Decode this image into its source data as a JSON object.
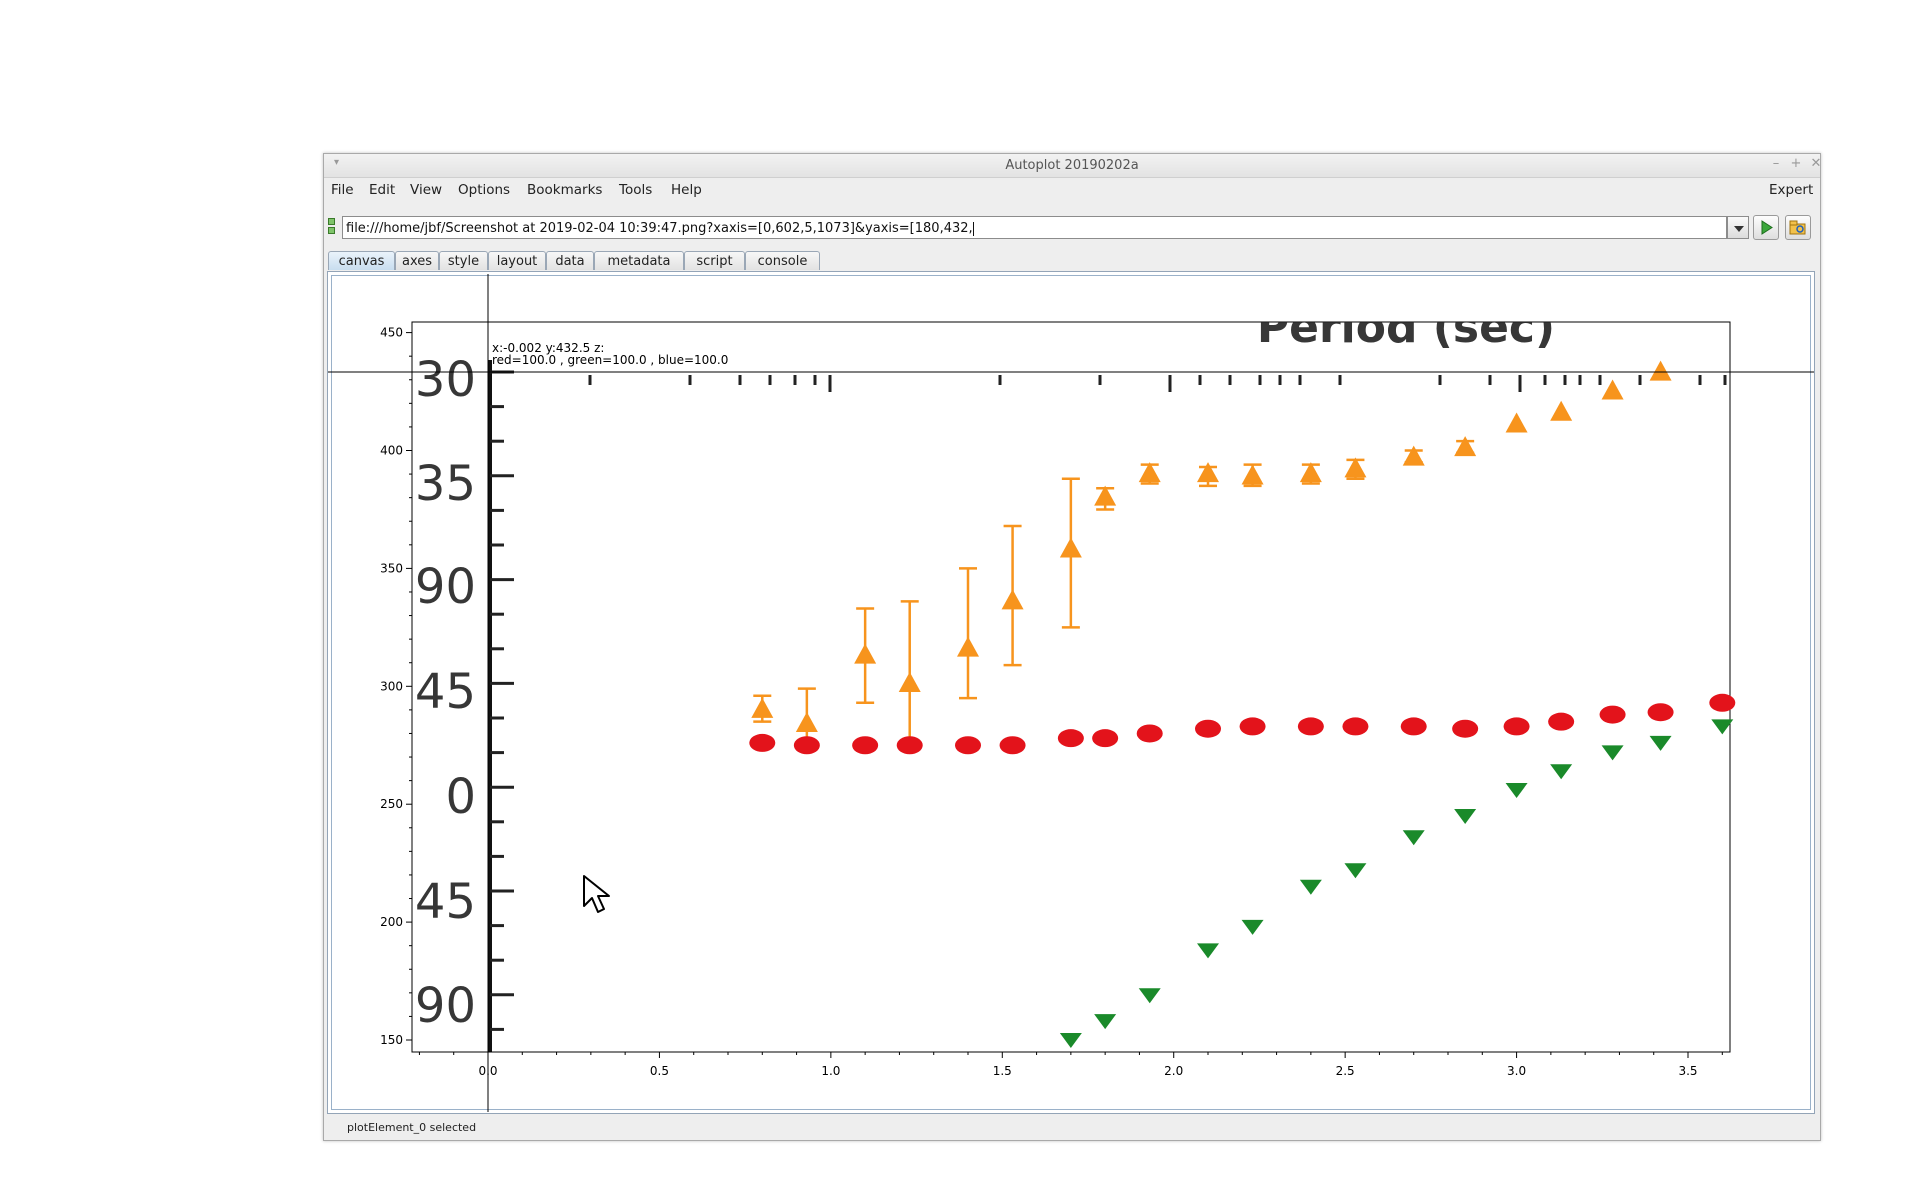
{
  "window": {
    "title": "Autoplot 20190202a"
  },
  "menubar": {
    "items": [
      "File",
      "Edit",
      "View",
      "Options",
      "Bookmarks",
      "Tools",
      "Help"
    ],
    "expert_label": "Expert"
  },
  "urlbar": {
    "value": "file:///home/jbf/Screenshot at 2019-02-04 10:39:47.png?xaxis=[0,602,5,1073]&yaxis=[180,432,"
  },
  "tabs": [
    {
      "label": "canvas",
      "active": true
    },
    {
      "label": "axes"
    },
    {
      "label": "style"
    },
    {
      "label": "layout"
    },
    {
      "label": "data"
    },
    {
      "label": "metadata"
    },
    {
      "label": "script"
    },
    {
      "label": "console"
    }
  ],
  "readout": {
    "line1": "x:-0.002  y:432.5  z:",
    "line2": "red=100.0 , green=100.0 , blue=100.0"
  },
  "status": {
    "text": "plotElement_0 selected"
  },
  "icons": [
    "minimize-icon",
    "maximize-icon",
    "close-icon",
    "run-icon",
    "open-folder-icon",
    "dropdown-arrow-icon",
    "mouse-cursor-icon"
  ],
  "chart_data": {
    "type": "scatter",
    "xlim": [
      -0.2,
      3.62
    ],
    "ylim": [
      148,
      452
    ],
    "x_ticks": [
      "0.0",
      "0.5",
      "1.0",
      "1.5",
      "2.0",
      "2.5",
      "3.0",
      "3.5"
    ],
    "y_ticks": [
      "150",
      "200",
      "250",
      "300",
      "350",
      "400",
      "450"
    ],
    "image_text": {
      "header": "Period (sec)",
      "left_labels": [
        "30",
        "35",
        "90",
        "45",
        "0",
        "45",
        "90"
      ]
    },
    "series": [
      {
        "color": "#f7941d",
        "marker": "triangle-up",
        "points": [
          {
            "x": 0.8,
            "y": 290,
            "err": [
              285,
              296
            ]
          },
          {
            "x": 0.93,
            "y": 284,
            "err": [
              274,
              299
            ]
          },
          {
            "x": 1.1,
            "y": 313,
            "err": [
              293,
              333
            ]
          },
          {
            "x": 1.23,
            "y": 301,
            "err": [
              277,
              336
            ]
          },
          {
            "x": 1.4,
            "y": 316,
            "err": [
              295,
              350
            ]
          },
          {
            "x": 1.53,
            "y": 336,
            "err": [
              309,
              368
            ]
          },
          {
            "x": 1.7,
            "y": 358,
            "err": [
              325,
              388
            ]
          },
          {
            "x": 1.8,
            "y": 380,
            "err": [
              375,
              384
            ]
          },
          {
            "x": 1.93,
            "y": 390,
            "err": [
              386,
              394
            ]
          },
          {
            "x": 2.1,
            "y": 390,
            "err": [
              385,
              393
            ]
          },
          {
            "x": 2.23,
            "y": 389,
            "err": [
              385,
              394
            ]
          },
          {
            "x": 2.4,
            "y": 390,
            "err": [
              386,
              394
            ]
          },
          {
            "x": 2.53,
            "y": 392,
            "err": [
              388,
              396
            ]
          },
          {
            "x": 2.7,
            "y": 397,
            "err": [
              395,
              400
            ]
          },
          {
            "x": 2.85,
            "y": 401,
            "err": [
              399,
              404
            ]
          },
          {
            "x": 3.0,
            "y": 411
          },
          {
            "x": 3.13,
            "y": 416
          },
          {
            "x": 3.28,
            "y": 425
          },
          {
            "x": 3.42,
            "y": 433
          }
        ]
      },
      {
        "color": "#e3131b",
        "marker": "circle",
        "points": [
          {
            "x": 0.8,
            "y": 276
          },
          {
            "x": 0.93,
            "y": 275
          },
          {
            "x": 1.1,
            "y": 275
          },
          {
            "x": 1.23,
            "y": 275
          },
          {
            "x": 1.4,
            "y": 275
          },
          {
            "x": 1.53,
            "y": 275
          },
          {
            "x": 1.7,
            "y": 278
          },
          {
            "x": 1.8,
            "y": 278
          },
          {
            "x": 1.93,
            "y": 280
          },
          {
            "x": 2.1,
            "y": 282
          },
          {
            "x": 2.23,
            "y": 283
          },
          {
            "x": 2.4,
            "y": 283
          },
          {
            "x": 2.53,
            "y": 283
          },
          {
            "x": 2.7,
            "y": 283
          },
          {
            "x": 2.85,
            "y": 282
          },
          {
            "x": 3.0,
            "y": 283
          },
          {
            "x": 3.13,
            "y": 285
          },
          {
            "x": 3.28,
            "y": 288
          },
          {
            "x": 3.42,
            "y": 289
          },
          {
            "x": 3.6,
            "y": 293
          }
        ]
      },
      {
        "color": "#1a8a2a",
        "marker": "triangle-down",
        "points": [
          {
            "x": 1.7,
            "y": 150
          },
          {
            "x": 1.8,
            "y": 158
          },
          {
            "x": 1.93,
            "y": 169
          },
          {
            "x": 2.1,
            "y": 188
          },
          {
            "x": 2.23,
            "y": 198
          },
          {
            "x": 2.4,
            "y": 215
          },
          {
            "x": 2.53,
            "y": 222
          },
          {
            "x": 2.7,
            "y": 236
          },
          {
            "x": 2.85,
            "y": 245
          },
          {
            "x": 3.0,
            "y": 256
          },
          {
            "x": 3.13,
            "y": 264
          },
          {
            "x": 3.28,
            "y": 272
          },
          {
            "x": 3.42,
            "y": 276
          },
          {
            "x": 3.6,
            "y": 283
          }
        ]
      }
    ]
  }
}
